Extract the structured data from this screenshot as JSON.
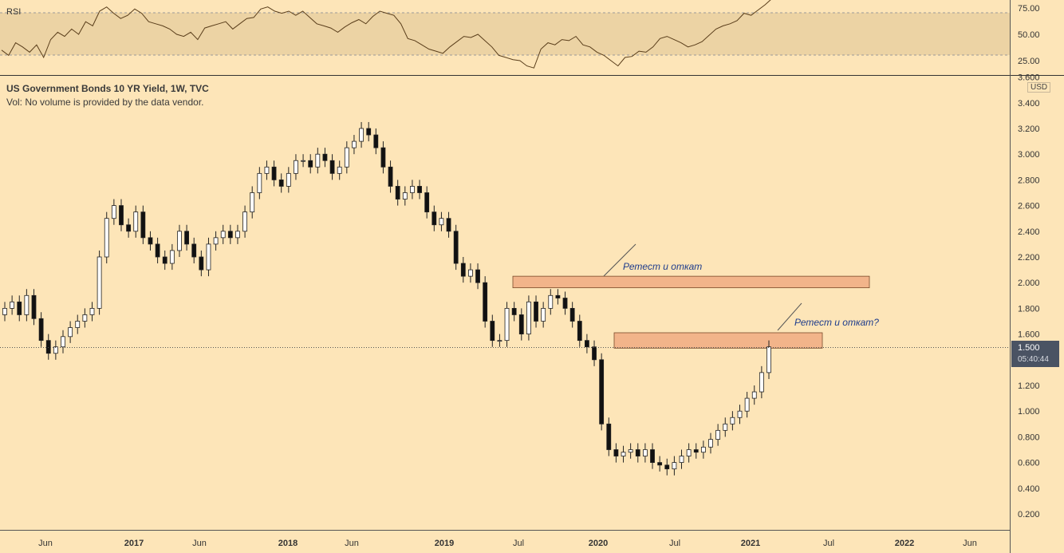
{
  "rsi": {
    "label": "RSI",
    "ticks": [
      "75.00",
      "50.00",
      "25.00"
    ],
    "upper_band": 70,
    "lower_band": 30,
    "series": [
      35,
      30,
      42,
      38,
      33,
      40,
      28,
      45,
      52,
      48,
      55,
      50,
      62,
      58,
      72,
      76,
      70,
      65,
      68,
      74,
      70,
      62,
      60,
      58,
      55,
      50,
      48,
      52,
      45,
      56,
      58,
      60,
      62,
      55,
      60,
      65,
      66,
      74,
      76,
      72,
      70,
      72,
      68,
      72,
      66,
      60,
      58,
      56,
      52,
      57,
      61,
      64,
      60,
      67,
      72,
      70,
      68,
      60,
      46,
      44,
      40,
      36,
      34,
      32,
      38,
      43,
      48,
      47,
      50,
      44,
      38,
      30,
      28,
      26,
      25,
      20,
      18,
      36,
      42,
      40,
      45,
      44,
      48,
      40,
      38,
      33,
      30,
      25,
      20,
      28,
      29,
      34,
      33,
      38,
      46,
      48,
      45,
      42,
      38,
      40,
      43,
      49,
      55,
      58,
      60,
      63,
      70,
      68,
      73,
      78,
      84
    ]
  },
  "chart_data": {
    "type": "candlestick",
    "title": "US Government Bonds 10 YR Yield, 1W, TVC",
    "volume_note": "Vol: No volume is provided by the data vendor.",
    "currency": "USD",
    "ylim": [
      0.1,
      3.65
    ],
    "y_ticks": [
      "3.600",
      "3.400",
      "3.200",
      "3.000",
      "2.800",
      "2.600",
      "2.400",
      "2.200",
      "2.000",
      "1.800",
      "1.600",
      "1.400",
      "1.200",
      "1.000",
      "0.800",
      "0.600",
      "0.400",
      "0.200"
    ],
    "x_ticks": [
      "Jun",
      "2017",
      "Jun",
      "2018",
      "Jun",
      "2019",
      "Jul",
      "2020",
      "Jul",
      "2021",
      "Jul",
      "2022",
      "Jun"
    ],
    "closes": [
      1.8,
      1.85,
      1.75,
      1.9,
      1.72,
      1.55,
      1.45,
      1.5,
      1.58,
      1.65,
      1.7,
      1.75,
      1.8,
      2.2,
      2.5,
      2.6,
      2.45,
      2.4,
      2.55,
      2.35,
      2.3,
      2.2,
      2.15,
      2.25,
      2.4,
      2.3,
      2.2,
      2.1,
      2.3,
      2.35,
      2.4,
      2.35,
      2.4,
      2.55,
      2.7,
      2.85,
      2.9,
      2.8,
      2.75,
      2.85,
      2.95,
      2.95,
      2.9,
      3.0,
      2.95,
      2.85,
      2.9,
      3.05,
      3.1,
      3.2,
      3.15,
      3.05,
      2.9,
      2.75,
      2.65,
      2.7,
      2.75,
      2.7,
      2.55,
      2.45,
      2.5,
      2.4,
      2.15,
      2.05,
      2.1,
      2.0,
      1.7,
      1.55,
      1.55,
      1.8,
      1.75,
      1.6,
      1.85,
      1.7,
      1.8,
      1.9,
      1.88,
      1.8,
      1.7,
      1.55,
      1.5,
      1.4,
      0.9,
      0.7,
      0.65,
      0.68,
      0.7,
      0.65,
      0.7,
      0.6,
      0.58,
      0.55,
      0.6,
      0.65,
      0.7,
      0.68,
      0.72,
      0.78,
      0.85,
      0.9,
      0.95,
      1.0,
      1.1,
      1.15,
      1.3,
      1.5
    ],
    "current_price": "1.500",
    "countdown": "05:40:44",
    "zones": [
      {
        "name": "resistance-zone-2020",
        "y_low": 1.96,
        "y_high": 2.05
      },
      {
        "name": "resistance-zone-2021",
        "y_low": 1.49,
        "y_high": 1.61
      }
    ],
    "annotations": [
      "Ретест и откат",
      "Ретест и откат?"
    ]
  }
}
